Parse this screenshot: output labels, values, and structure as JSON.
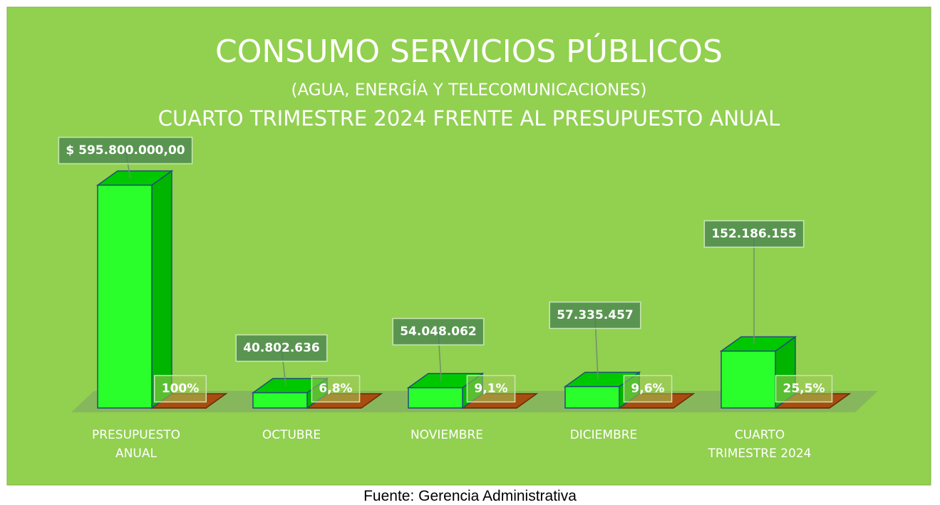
{
  "chart_data": {
    "type": "bar3d",
    "title": "CONSUMO SERVICIOS PÚBLICOS",
    "subtitle": "(AGUA, ENERGÍA Y TELECOMUNICACIONES)",
    "subtitle2": "CUARTO  TRIMESTRE 2024 FRENTE AL PRESUPUESTO ANUAL",
    "source": "Fuente: Gerencia Administrativa",
    "categories": [
      "PRESUPUESTO ANUAL",
      "OCTUBRE",
      "NOVIEMBRE",
      "DICIEMBRE",
      "CUARTO TRIMESTRE 2024"
    ],
    "ylim": [
      0,
      700000000
    ],
    "series": [
      {
        "color": "#2bff2b",
        "values": [
          595800000,
          40802636,
          54048062,
          57335457,
          152186155
        ],
        "value_labels": [
          "$ 595.800.000,00",
          "40.802.636",
          "54.048.062",
          "57.335.457",
          "152.186.155"
        ]
      },
      {
        "color": "#c55a11",
        "values": [
          100,
          6.8,
          9.1,
          9.6,
          25.5
        ],
        "value_labels": [
          "100%",
          "6,8%",
          "9,1%",
          "9,6%",
          "25,5%"
        ]
      }
    ]
  }
}
